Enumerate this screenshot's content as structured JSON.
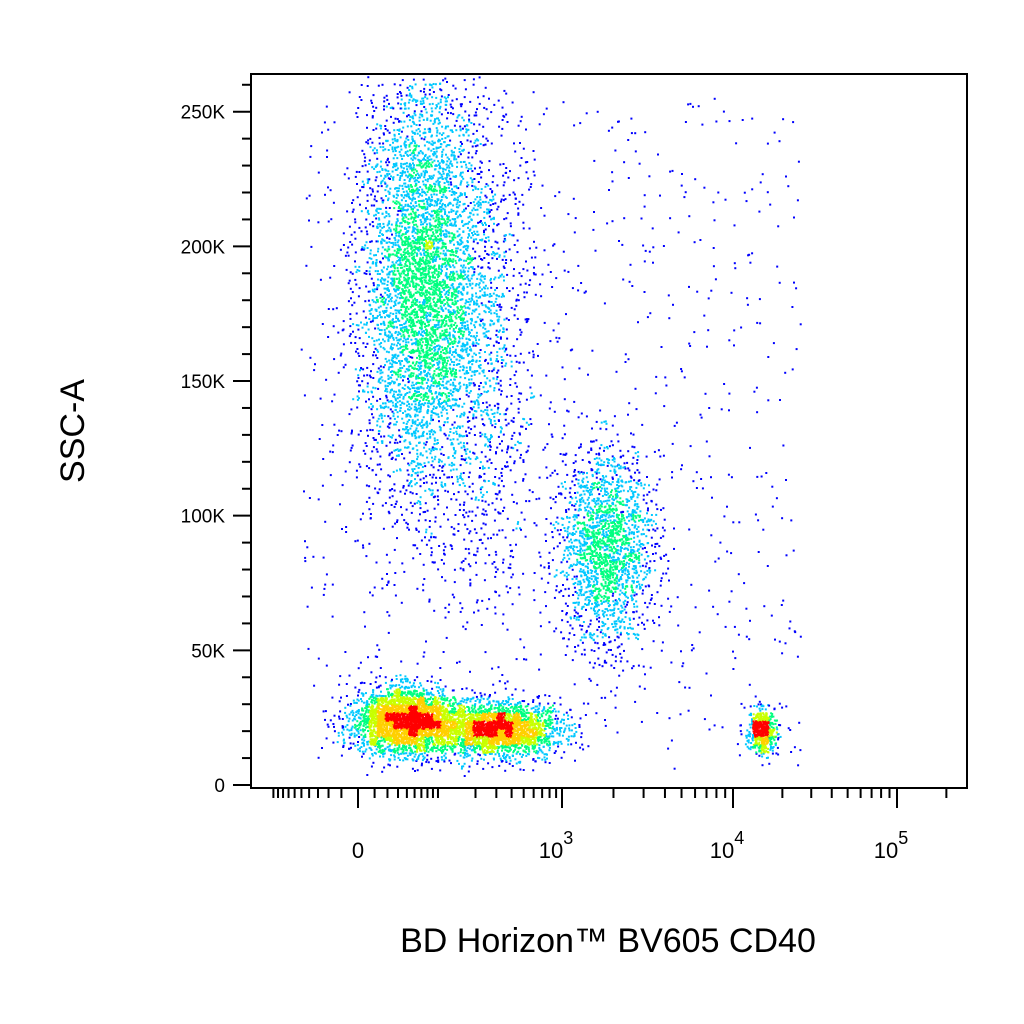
{
  "chart_data": {
    "type": "scatter",
    "style": "density-pseudocolor",
    "xlabel": "BD Horizon™ BV605 CD40",
    "ylabel": "SSC-A",
    "x_scale": "biexponential",
    "xlim": [
      -200,
      150000
    ],
    "ylim": [
      0,
      262144
    ],
    "y_ticks": [
      {
        "value": 0,
        "label": "0"
      },
      {
        "value": 50000,
        "label": "50K"
      },
      {
        "value": 100000,
        "label": "100K"
      },
      {
        "value": 150000,
        "label": "150K"
      },
      {
        "value": 200000,
        "label": "200K"
      },
      {
        "value": 250000,
        "label": "250K"
      }
    ],
    "x_ticks": [
      {
        "value": 0,
        "label": "0",
        "sup": ""
      },
      {
        "value": 1000,
        "label": "10",
        "sup": "3"
      },
      {
        "value": 10000,
        "label": "10",
        "sup": "4"
      },
      {
        "value": 100000,
        "label": "10",
        "sup": "5"
      }
    ],
    "density_colors": [
      "#0000ff",
      "#00c8ff",
      "#00ff80",
      "#c8ff00",
      "#ffd000",
      "#ff0000"
    ],
    "populations": [
      {
        "x_center": 60,
        "y_center": 185000,
        "y_spread": 40000,
        "x_spread_decades": 0.5,
        "weight": 0.36
      },
      {
        "x_center": 40,
        "y_center": 24000,
        "y_spread": 6000,
        "x_spread_decades": 0.45,
        "weight": 0.22
      },
      {
        "x_center": 300,
        "y_center": 21000,
        "y_spread": 5000,
        "x_spread_decades": 0.5,
        "weight": 0.18
      },
      {
        "x_center": 1800,
        "y_center": 88000,
        "y_spread": 18000,
        "x_spread_decades": 0.4,
        "weight": 0.14
      },
      {
        "x_center": 15000,
        "y_center": 20000,
        "y_spread": 4000,
        "x_spread_decades": 0.12,
        "weight": 0.04
      },
      {
        "x_center": 250,
        "y_center": 160000,
        "y_spread": 50000,
        "x_spread_decades": 0.4,
        "weight": 0.06
      }
    ],
    "grid": false,
    "legend": "none"
  }
}
